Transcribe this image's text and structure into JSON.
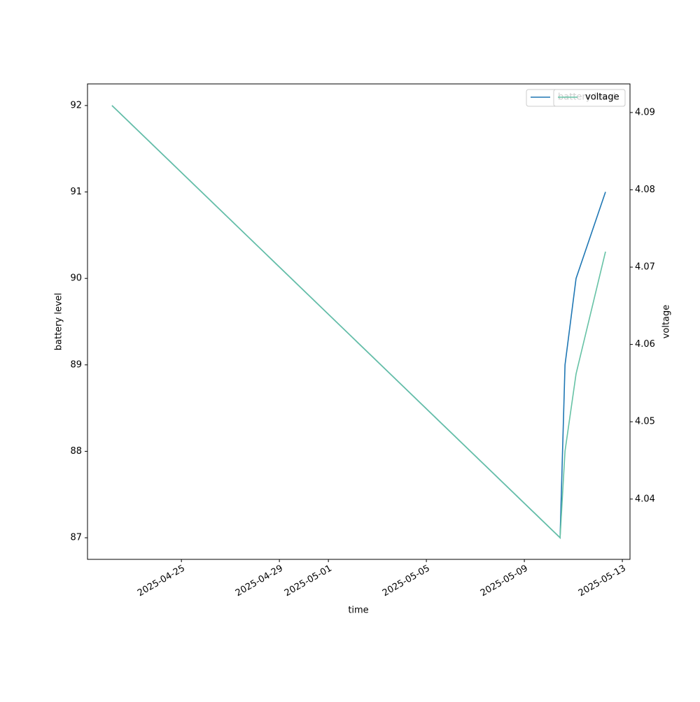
{
  "chart_data": {
    "type": "line",
    "x_label": "time",
    "y_label": "battery level",
    "y2_label": "voltage",
    "x": [
      "2025-04-22T04:00",
      "2025-05-10T11:00",
      "2025-05-10T15:50",
      "2025-05-11T02:40",
      "2025-05-12T07:30"
    ],
    "series": [
      {
        "name": "battery level",
        "color": "#1f77b4",
        "values": [
          92,
          87,
          89,
          90,
          91
        ]
      },
      {
        "name": "voltage",
        "color": "#66c2a5",
        "axis": "y2",
        "values": [
          4.0909,
          4.035,
          4.0462,
          4.0562,
          4.072
        ]
      }
    ],
    "xlim": [
      "2025-04-21T04:00",
      "2025-05-13T07:30"
    ],
    "xticks": [
      "2025-04-25",
      "2025-04-29",
      "2025-05-01",
      "2025-05-05",
      "2025-05-09",
      "2025-05-13"
    ],
    "ylim": [
      86.75,
      92.25
    ],
    "yticks": [
      87,
      88,
      89,
      90,
      91,
      92
    ],
    "y2lim": [
      4.0322,
      4.0937
    ],
    "y2ticks": [
      4.04,
      4.05,
      4.06,
      4.07,
      4.08,
      4.09
    ],
    "grid": false,
    "legend": "upper right"
  }
}
